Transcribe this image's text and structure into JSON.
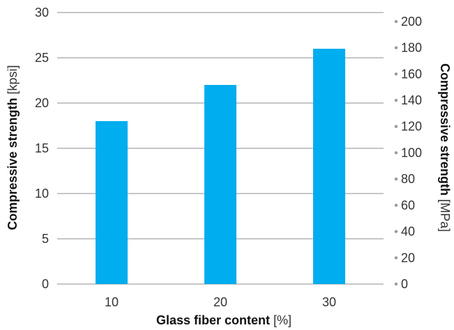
{
  "chart_data": {
    "type": "bar",
    "categories": [
      "10",
      "20",
      "30"
    ],
    "values": [
      18,
      22,
      26
    ],
    "xlabel_main": "Glass fiber content",
    "xlabel_unit": "[%]",
    "ylabel_main": "Compressive strength",
    "ylabel_unit": "[kpsi]",
    "y2label_main": "Compressive strength",
    "y2label_unit": "[MPa]",
    "ylim": [
      0,
      30
    ],
    "yticks": [
      "0",
      "5",
      "10",
      "15",
      "20",
      "25",
      "30"
    ],
    "y2ticks": [
      "0",
      "20",
      "40",
      "60",
      "80",
      "100",
      "120",
      "140",
      "160",
      "180",
      "200"
    ],
    "y2_values": [
      0,
      20,
      40,
      60,
      80,
      100,
      120,
      140,
      160,
      180,
      200
    ],
    "mpa_per_kpsi": 6.89476,
    "grid": true,
    "bar_color": "#00ADEF"
  }
}
